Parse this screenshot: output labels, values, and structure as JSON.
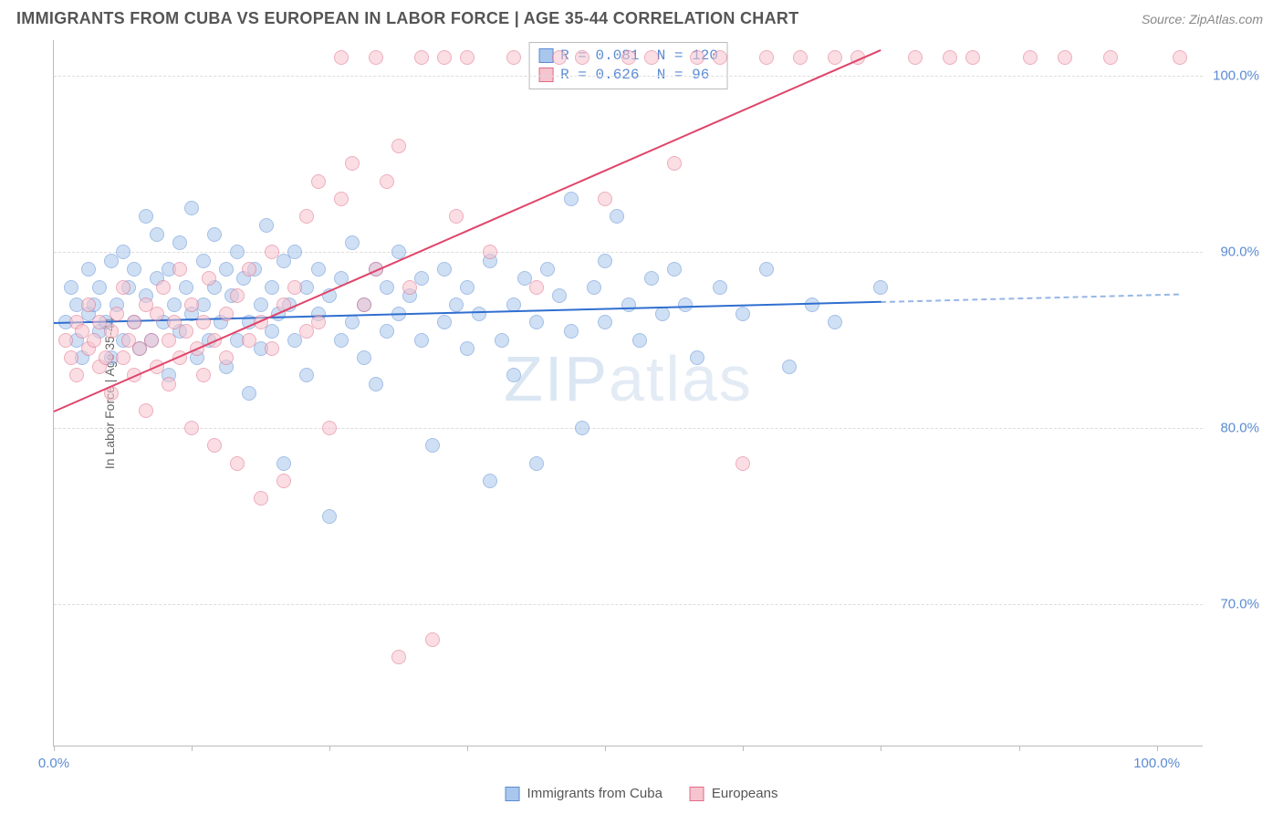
{
  "title": "IMMIGRANTS FROM CUBA VS EUROPEAN IN LABOR FORCE | AGE 35-44 CORRELATION CHART",
  "source": "Source: ZipAtlas.com",
  "watermark": "ZIPatlas",
  "chart": {
    "type": "scatter",
    "background_color": "#ffffff",
    "grid_color": "#dddddd",
    "axis_color": "#bbbbbb",
    "y_axis_title": "In Labor Force | Age 35-44",
    "xlim": [
      0,
      100
    ],
    "ylim": [
      62,
      102
    ],
    "xtick_positions": [
      0,
      12,
      24,
      36,
      48,
      60,
      72,
      84,
      96
    ],
    "xtick_labels": {
      "0": "0.0%",
      "96": "100.0%"
    },
    "ytick_positions": [
      70,
      80,
      90,
      100
    ],
    "ytick_labels": {
      "70": "70.0%",
      "80": "80.0%",
      "90": "90.0%",
      "100": "100.0%"
    },
    "label_color": "#5b8bd4",
    "label_fontsize": 15,
    "marker_radius": 8,
    "marker_opacity": 0.55,
    "series": [
      {
        "name": "Immigrants from Cuba",
        "fill": "#a9c7ec",
        "stroke": "#5b8bd4",
        "trend_color": "#2f6fd0",
        "trend": {
          "x1": 0,
          "y1": 86.0,
          "x2": 72,
          "y2": 87.2,
          "dash_to_x": 98
        },
        "R": "0.081",
        "N": "120",
        "points": [
          [
            1,
            86
          ],
          [
            1.5,
            88
          ],
          [
            2,
            85
          ],
          [
            2,
            87
          ],
          [
            2.5,
            84
          ],
          [
            3,
            86.5
          ],
          [
            3,
            89
          ],
          [
            3.5,
            87
          ],
          [
            4,
            85.5
          ],
          [
            4,
            88
          ],
          [
            4.5,
            86
          ],
          [
            5,
            89.5
          ],
          [
            5,
            84
          ],
          [
            5.5,
            87
          ],
          [
            6,
            90
          ],
          [
            6,
            85
          ],
          [
            6.5,
            88
          ],
          [
            7,
            86
          ],
          [
            7,
            89
          ],
          [
            7.5,
            84.5
          ],
          [
            8,
            92
          ],
          [
            8,
            87.5
          ],
          [
            8.5,
            85
          ],
          [
            9,
            88.5
          ],
          [
            9,
            91
          ],
          [
            9.5,
            86
          ],
          [
            10,
            89
          ],
          [
            10,
            83
          ],
          [
            10.5,
            87
          ],
          [
            11,
            90.5
          ],
          [
            11,
            85.5
          ],
          [
            11.5,
            88
          ],
          [
            12,
            86.5
          ],
          [
            12,
            92.5
          ],
          [
            12.5,
            84
          ],
          [
            13,
            87
          ],
          [
            13,
            89.5
          ],
          [
            13.5,
            85
          ],
          [
            14,
            91
          ],
          [
            14,
            88
          ],
          [
            14.5,
            86
          ],
          [
            15,
            83.5
          ],
          [
            15,
            89
          ],
          [
            15.5,
            87.5
          ],
          [
            16,
            85
          ],
          [
            16,
            90
          ],
          [
            16.5,
            88.5
          ],
          [
            17,
            86
          ],
          [
            17,
            82
          ],
          [
            17.5,
            89
          ],
          [
            18,
            87
          ],
          [
            18,
            84.5
          ],
          [
            18.5,
            91.5
          ],
          [
            19,
            85.5
          ],
          [
            19,
            88
          ],
          [
            19.5,
            86.5
          ],
          [
            20,
            78
          ],
          [
            20,
            89.5
          ],
          [
            20.5,
            87
          ],
          [
            21,
            85
          ],
          [
            21,
            90
          ],
          [
            22,
            88
          ],
          [
            22,
            83
          ],
          [
            23,
            86.5
          ],
          [
            23,
            89
          ],
          [
            24,
            87.5
          ],
          [
            24,
            75
          ],
          [
            25,
            85
          ],
          [
            25,
            88.5
          ],
          [
            26,
            90.5
          ],
          [
            26,
            86
          ],
          [
            27,
            84
          ],
          [
            27,
            87
          ],
          [
            28,
            89
          ],
          [
            28,
            82.5
          ],
          [
            29,
            85.5
          ],
          [
            29,
            88
          ],
          [
            30,
            86.5
          ],
          [
            30,
            90
          ],
          [
            31,
            87.5
          ],
          [
            32,
            85
          ],
          [
            32,
            88.5
          ],
          [
            33,
            79
          ],
          [
            34,
            86
          ],
          [
            34,
            89
          ],
          [
            35,
            87
          ],
          [
            36,
            84.5
          ],
          [
            36,
            88
          ],
          [
            37,
            86.5
          ],
          [
            38,
            77
          ],
          [
            38,
            89.5
          ],
          [
            39,
            85
          ],
          [
            40,
            87
          ],
          [
            40,
            83
          ],
          [
            41,
            88.5
          ],
          [
            42,
            78
          ],
          [
            42,
            86
          ],
          [
            43,
            89
          ],
          [
            44,
            87.5
          ],
          [
            45,
            85.5
          ],
          [
            45,
            93
          ],
          [
            46,
            80
          ],
          [
            47,
            88
          ],
          [
            48,
            86
          ],
          [
            48,
            89.5
          ],
          [
            49,
            92
          ],
          [
            50,
            87
          ],
          [
            51,
            85
          ],
          [
            52,
            88.5
          ],
          [
            53,
            86.5
          ],
          [
            54,
            89
          ],
          [
            55,
            87
          ],
          [
            56,
            84
          ],
          [
            58,
            88
          ],
          [
            60,
            86.5
          ],
          [
            62,
            89
          ],
          [
            64,
            83.5
          ],
          [
            66,
            87
          ],
          [
            68,
            86
          ],
          [
            72,
            88
          ]
        ]
      },
      {
        "name": "Europeans",
        "fill": "#f6c4cf",
        "stroke": "#e16b86",
        "trend_color": "#e0446a",
        "trend": {
          "x1": 0,
          "y1": 81.0,
          "x2": 72,
          "y2": 101.5
        },
        "R": "0.626",
        "N": " 96",
        "points": [
          [
            1,
            85
          ],
          [
            1.5,
            84
          ],
          [
            2,
            86
          ],
          [
            2,
            83
          ],
          [
            2.5,
            85.5
          ],
          [
            3,
            84.5
          ],
          [
            3,
            87
          ],
          [
            3.5,
            85
          ],
          [
            4,
            83.5
          ],
          [
            4,
            86
          ],
          [
            4.5,
            84
          ],
          [
            5,
            85.5
          ],
          [
            5,
            82
          ],
          [
            5.5,
            86.5
          ],
          [
            6,
            84
          ],
          [
            6,
            88
          ],
          [
            6.5,
            85
          ],
          [
            7,
            83
          ],
          [
            7,
            86
          ],
          [
            7.5,
            84.5
          ],
          [
            8,
            87
          ],
          [
            8,
            81
          ],
          [
            8.5,
            85
          ],
          [
            9,
            86.5
          ],
          [
            9,
            83.5
          ],
          [
            9.5,
            88
          ],
          [
            10,
            85
          ],
          [
            10,
            82.5
          ],
          [
            10.5,
            86
          ],
          [
            11,
            84
          ],
          [
            11,
            89
          ],
          [
            11.5,
            85.5
          ],
          [
            12,
            80
          ],
          [
            12,
            87
          ],
          [
            12.5,
            84.5
          ],
          [
            13,
            86
          ],
          [
            13,
            83
          ],
          [
            13.5,
            88.5
          ],
          [
            14,
            85
          ],
          [
            14,
            79
          ],
          [
            15,
            86.5
          ],
          [
            15,
            84
          ],
          [
            16,
            87.5
          ],
          [
            16,
            78
          ],
          [
            17,
            85
          ],
          [
            17,
            89
          ],
          [
            18,
            76
          ],
          [
            18,
            86
          ],
          [
            19,
            84.5
          ],
          [
            19,
            90
          ],
          [
            20,
            87
          ],
          [
            20,
            77
          ],
          [
            21,
            88
          ],
          [
            22,
            85.5
          ],
          [
            22,
            92
          ],
          [
            23,
            94
          ],
          [
            23,
            86
          ],
          [
            24,
            80
          ],
          [
            25,
            101
          ],
          [
            25,
            93
          ],
          [
            26,
            95
          ],
          [
            27,
            87
          ],
          [
            28,
            101
          ],
          [
            28,
            89
          ],
          [
            29,
            94
          ],
          [
            30,
            67
          ],
          [
            30,
            96
          ],
          [
            31,
            88
          ],
          [
            32,
            101
          ],
          [
            33,
            68
          ],
          [
            34,
            101
          ],
          [
            35,
            92
          ],
          [
            36,
            101
          ],
          [
            38,
            90
          ],
          [
            40,
            101
          ],
          [
            42,
            88
          ],
          [
            44,
            101
          ],
          [
            46,
            101
          ],
          [
            48,
            93
          ],
          [
            50,
            101
          ],
          [
            52,
            101
          ],
          [
            54,
            95
          ],
          [
            56,
            101
          ],
          [
            58,
            101
          ],
          [
            60,
            78
          ],
          [
            62,
            101
          ],
          [
            65,
            101
          ],
          [
            68,
            101
          ],
          [
            70,
            101
          ],
          [
            75,
            101
          ],
          [
            78,
            101
          ],
          [
            80,
            101
          ],
          [
            85,
            101
          ],
          [
            88,
            101
          ],
          [
            92,
            101
          ],
          [
            98,
            101
          ]
        ]
      }
    ],
    "legend": {
      "items": [
        {
          "label": "Immigrants from Cuba",
          "fill": "#a9c7ec",
          "stroke": "#5b8bd4"
        },
        {
          "label": "Europeans",
          "fill": "#f6c4cf",
          "stroke": "#e16b86"
        }
      ]
    }
  }
}
